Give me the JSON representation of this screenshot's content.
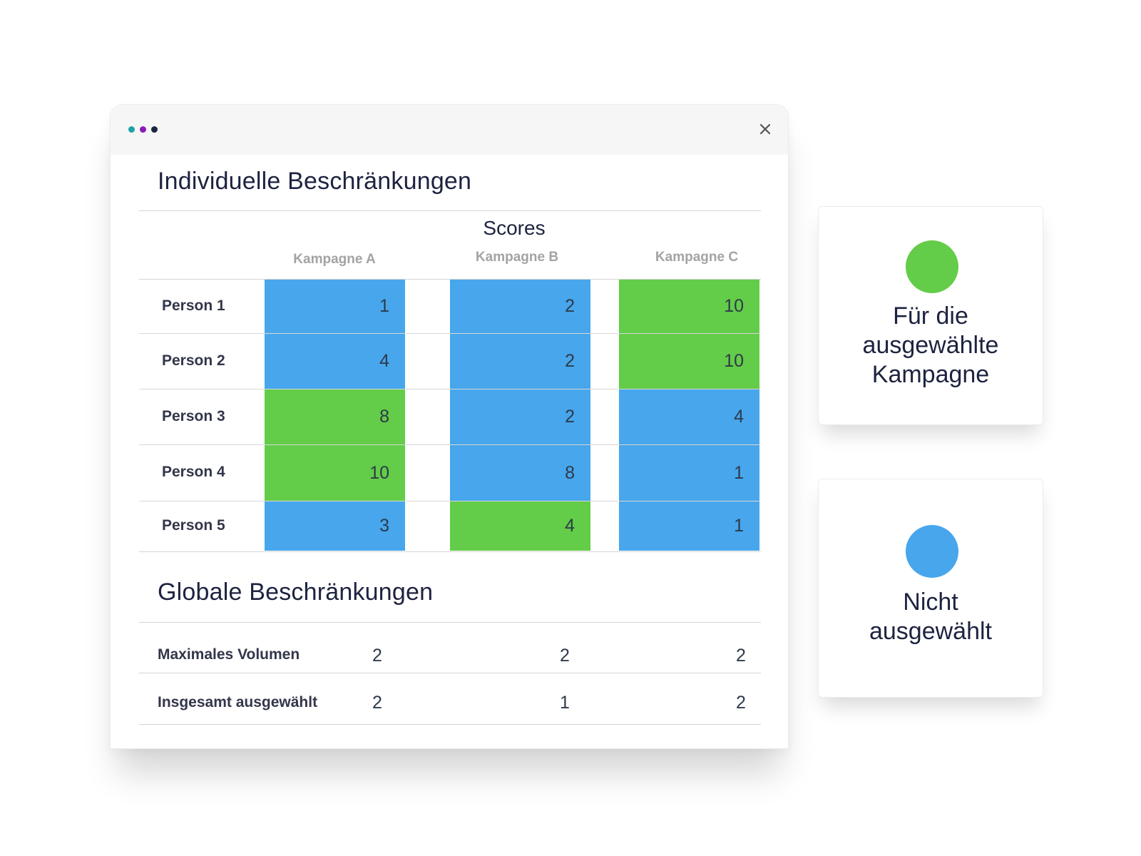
{
  "window": {
    "dots": [
      "teal-dot",
      "purple-dot",
      "navy-dot"
    ],
    "dot_colors": [
      "#1fa2a6",
      "#8a1bb8",
      "#1d2340"
    ],
    "close_icon": "close-icon"
  },
  "individual": {
    "title": "Individuelle Beschränkungen",
    "scores_title": "Scores",
    "columns": [
      "Kampagne A",
      "Kampagne B",
      "Kampagne C"
    ],
    "rows": [
      {
        "label": "Person 1",
        "cells": [
          {
            "value": "1",
            "status": "blue"
          },
          {
            "value": "2",
            "status": "blue"
          },
          {
            "value": "10",
            "status": "green"
          }
        ]
      },
      {
        "label": "Person 2",
        "cells": [
          {
            "value": "4",
            "status": "blue"
          },
          {
            "value": "2",
            "status": "blue"
          },
          {
            "value": "10",
            "status": "green"
          }
        ]
      },
      {
        "label": "Person 3",
        "cells": [
          {
            "value": "8",
            "status": "green"
          },
          {
            "value": "2",
            "status": "blue"
          },
          {
            "value": "4",
            "status": "blue"
          }
        ]
      },
      {
        "label": "Person 4",
        "cells": [
          {
            "value": "10",
            "status": "green"
          },
          {
            "value": "8",
            "status": "blue"
          },
          {
            "value": "1",
            "status": "blue"
          }
        ]
      },
      {
        "label": "Person 5",
        "cells": [
          {
            "value": "3",
            "status": "blue"
          },
          {
            "value": "4",
            "status": "green"
          },
          {
            "value": "1",
            "status": "blue"
          }
        ]
      }
    ]
  },
  "global": {
    "title": "Globale Beschränkungen",
    "rows": [
      {
        "label": "Maximales Volumen",
        "values": [
          "2",
          "2",
          "2"
        ]
      },
      {
        "label": "Insgesamt ausgewählt",
        "values": [
          "2",
          "1",
          "2"
        ]
      }
    ]
  },
  "legend": {
    "selected": {
      "lines": [
        "Für die",
        "ausgewählte",
        "Kampagne"
      ],
      "color": "#63cc48"
    },
    "not_selected": {
      "lines": [
        "Nicht",
        "ausgewählt"
      ],
      "color": "#47a6ec"
    }
  },
  "colors": {
    "green": "#63cc48",
    "blue": "#47a6ec",
    "text_dark": "#1d2340"
  }
}
